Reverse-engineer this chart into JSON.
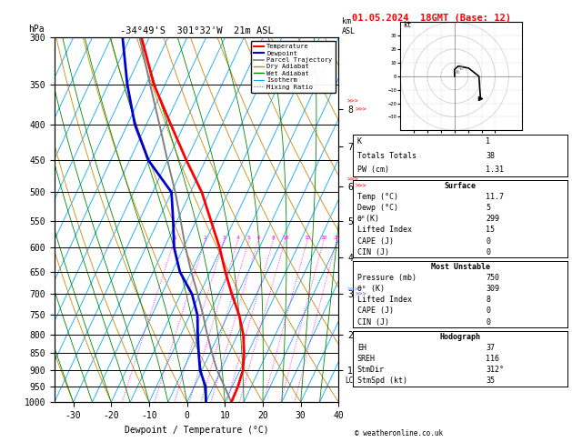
{
  "title_left": "-34°49'S  301°32'W  21m ASL",
  "title_right": "01.05.2024  18GMT (Base: 12)",
  "xlabel": "Dewpoint / Temperature (°C)",
  "ylabel_left": "hPa",
  "p_major_ticks": [
    300,
    350,
    400,
    450,
    500,
    550,
    600,
    650,
    700,
    750,
    800,
    850,
    900,
    950,
    1000
  ],
  "temp_ticks": [
    -30,
    -20,
    -10,
    0,
    10,
    20,
    30,
    40
  ],
  "temp_profile_p": [
    1000,
    950,
    900,
    850,
    800,
    750,
    700,
    650,
    600,
    550,
    500,
    450,
    400,
    350,
    300
  ],
  "temp_profile_t": [
    11.7,
    11.5,
    10.8,
    9.0,
    6.5,
    3.0,
    -1.5,
    -6.0,
    -10.5,
    -16.0,
    -22.0,
    -30.0,
    -38.5,
    -48.0,
    -57.0
  ],
  "dewp_profile_p": [
    1000,
    950,
    900,
    850,
    800,
    750,
    700,
    650,
    600,
    550,
    500,
    450,
    400,
    350,
    300
  ],
  "dewp_profile_t": [
    5.0,
    3.0,
    -0.5,
    -3.0,
    -5.5,
    -8.0,
    -12.0,
    -18.0,
    -22.5,
    -26.0,
    -30.0,
    -40.0,
    -48.0,
    -55.0,
    -62.0
  ],
  "parcel_p": [
    1000,
    950,
    900,
    850,
    800,
    750,
    700,
    650,
    600,
    550,
    500,
    450,
    400,
    350,
    300
  ],
  "parcel_t": [
    11.7,
    8.0,
    4.0,
    0.5,
    -3.0,
    -6.5,
    -10.5,
    -15.0,
    -19.5,
    -24.0,
    -29.0,
    -35.0,
    -41.5,
    -49.0,
    -57.5
  ],
  "km_levels": [
    1,
    2,
    3,
    4,
    5,
    6,
    7,
    8
  ],
  "km_pressures": [
    900,
    800,
    700,
    620,
    550,
    490,
    430,
    380
  ],
  "mixing_levels": [
    1,
    2,
    3,
    4,
    5,
    6,
    8,
    10,
    15,
    20,
    25
  ],
  "lcl_pressure": 930,
  "stats_K": 1,
  "stats_TT": 38,
  "stats_PW": 1.31,
  "stats_surf_temp": 11.7,
  "stats_surf_dewp": 5,
  "stats_surf_theta": 299,
  "stats_surf_li": 15,
  "stats_surf_cape": 0,
  "stats_surf_cin": 0,
  "stats_mu_pres": 750,
  "stats_mu_theta": 309,
  "stats_mu_li": 8,
  "stats_mu_cape": 0,
  "stats_mu_cin": 0,
  "stats_eh": 37,
  "stats_sreh": 116,
  "stats_stmdir": "312°",
  "stats_stmspd": 35,
  "bg_color": "#ffffff",
  "temp_color": "#ff0000",
  "dewp_color": "#0000cc",
  "parcel_color": "#808080",
  "dry_adiabat_color": "#cc8800",
  "wet_adiabat_color": "#008800",
  "isotherm_color": "#00aaff",
  "mixing_ratio_color": "#ff00ff",
  "copyright": "© weatheronline.co.uk"
}
